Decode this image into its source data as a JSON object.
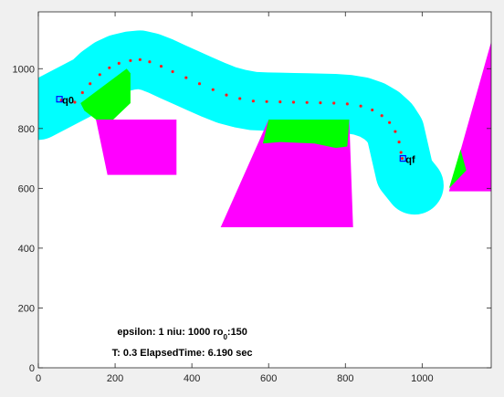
{
  "chart_data": {
    "type": "scatter",
    "title": "",
    "xlabel": "",
    "ylabel": "",
    "xlim": [
      0,
      1180
    ],
    "ylim": [
      0,
      1190
    ],
    "xticks": [
      0,
      200,
      400,
      600,
      800,
      1000
    ],
    "yticks": [
      0,
      200,
      400,
      600,
      800,
      1000
    ],
    "xtick_labels": [
      "0",
      "200",
      "400",
      "600",
      "800",
      "1000"
    ],
    "ytick_labels": [
      "0",
      "200",
      "400",
      "600",
      "800",
      "1000"
    ],
    "grid": false,
    "colors": {
      "obstacle": "#ff00ff",
      "inflation": "#00ffff",
      "overlap": "#00ff00",
      "path": "#ff2020",
      "marker": "#0000ff",
      "axes_bg": "#ffffff",
      "figure_bg": "#f0f0f0"
    },
    "obstacles": [
      {
        "name": "square-obstacle",
        "points": [
          [
            150,
            830
          ],
          [
            360,
            830
          ],
          [
            360,
            645
          ],
          [
            180,
            645
          ]
        ]
      },
      {
        "name": "trapezoid-obstacle",
        "points": [
          [
            600,
            830
          ],
          [
            810,
            830
          ],
          [
            820,
            470
          ],
          [
            475,
            470
          ]
        ]
      },
      {
        "name": "triangle-obstacle",
        "points": [
          [
            1180,
            1090
          ],
          [
            1180,
            590
          ],
          [
            1070,
            590
          ]
        ]
      }
    ],
    "overlaps": [
      {
        "name": "overlap-square",
        "points": [
          [
            110,
            885
          ],
          [
            230,
            1000
          ],
          [
            240,
            985
          ],
          [
            240,
            885
          ],
          [
            195,
            830
          ],
          [
            150,
            830
          ],
          [
            120,
            860
          ]
        ]
      },
      {
        "name": "overlap-trapezoid",
        "points": [
          [
            600,
            830
          ],
          [
            810,
            830
          ],
          [
            805,
            740
          ],
          [
            775,
            735
          ],
          [
            720,
            750
          ],
          [
            630,
            755
          ],
          [
            585,
            750
          ]
        ]
      },
      {
        "name": "overlap-triangle",
        "points": [
          [
            1070,
            600
          ],
          [
            1100,
            730
          ],
          [
            1115,
            660
          ]
        ]
      }
    ],
    "path_points": [
      [
        60,
        895
      ],
      [
        95,
        888
      ],
      [
        115,
        920
      ],
      [
        135,
        950
      ],
      [
        160,
        980
      ],
      [
        185,
        1003
      ],
      [
        210,
        1018
      ],
      [
        240,
        1027
      ],
      [
        265,
        1030
      ],
      [
        290,
        1023
      ],
      [
        320,
        1008
      ],
      [
        350,
        990
      ],
      [
        385,
        970
      ],
      [
        420,
        950
      ],
      [
        455,
        930
      ],
      [
        490,
        912
      ],
      [
        525,
        900
      ],
      [
        560,
        892
      ],
      [
        595,
        890
      ],
      [
        630,
        889
      ],
      [
        665,
        888
      ],
      [
        700,
        887
      ],
      [
        735,
        886
      ],
      [
        770,
        885
      ],
      [
        805,
        882
      ],
      [
        840,
        875
      ],
      [
        870,
        862
      ],
      [
        895,
        843
      ],
      [
        915,
        820
      ],
      [
        930,
        790
      ],
      [
        940,
        755
      ],
      [
        945,
        720
      ],
      [
        948,
        700
      ]
    ],
    "q0": {
      "label": "q0",
      "x": 55,
      "y": 898
    },
    "qf": {
      "label": "qf",
      "x": 950,
      "y": 700
    },
    "annotations": [
      {
        "x": 375,
        "y": 110,
        "text": "epsilon: 1 niu: 1000 ro",
        "subscript": "0",
        "suffix": ":150"
      },
      {
        "x": 375,
        "y": 40,
        "text": "T: 0.3 ElapsedTime: 6.190 sec"
      }
    ]
  }
}
